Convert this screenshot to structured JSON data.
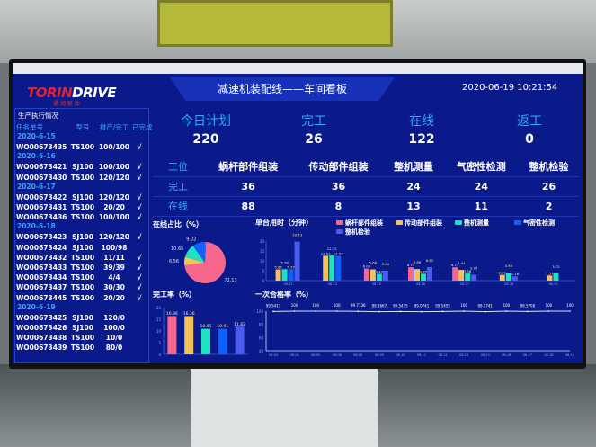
{
  "header": {
    "logo": "TORINDRIVE",
    "logo_sub": "通 润 驱 动",
    "title": "减速机装配线——车间看板",
    "datetime": "2020-06-19 10:21:54"
  },
  "orders": {
    "title": "生产执行情况",
    "columns": [
      "任务单号",
      "型号",
      "排产/完工",
      "已完成"
    ],
    "groups": [
      {
        "date": "2020-6-15",
        "rows": [
          [
            "WO00673435",
            "TS100",
            "100/100",
            "√"
          ]
        ]
      },
      {
        "date": "2020-6-16",
        "rows": [
          [
            "WO00673421",
            "SJ100",
            "100/100",
            "√"
          ],
          [
            "WO00673430",
            "TS100",
            "120/120",
            "√"
          ]
        ]
      },
      {
        "date": "2020-6-17",
        "rows": [
          [
            "WO00673422",
            "SJ100",
            "120/120",
            "√"
          ],
          [
            "WO00673431",
            "TS100",
            "20/20",
            "√"
          ],
          [
            "WO00673436",
            "TS100",
            "100/100",
            "√"
          ]
        ]
      },
      {
        "date": "2020-6-18",
        "rows": [
          [
            "WO00673423",
            "SJ100",
            "120/120",
            "√"
          ],
          [
            "WO00673424",
            "SJ100",
            "100/98",
            ""
          ],
          [
            "WO00673432",
            "TS100",
            "11/11",
            "√"
          ],
          [
            "WO00673433",
            "TS100",
            "39/39",
            "√"
          ],
          [
            "WO00673434",
            "TS100",
            "4/4",
            "√"
          ],
          [
            "WO00673437",
            "TS100",
            "30/30",
            "√"
          ],
          [
            "WO00673445",
            "TS100",
            "20/20",
            "√"
          ]
        ]
      },
      {
        "date": "2020-6-19",
        "rows": [
          [
            "WO00673425",
            "SJ100",
            "120/0",
            ""
          ],
          [
            "WO00673426",
            "SJ100",
            "100/0",
            ""
          ],
          [
            "WO00673438",
            "TS100",
            "10/0",
            ""
          ],
          [
            "WO00673439",
            "TS100",
            "80/0",
            ""
          ]
        ]
      }
    ]
  },
  "kpis": [
    {
      "label": "今日计划",
      "value": "220"
    },
    {
      "label": "完工",
      "value": "26"
    },
    {
      "label": "在线",
      "value": "122"
    },
    {
      "label": "返工",
      "value": "0"
    }
  ],
  "stations": {
    "header": "工位",
    "names": [
      "蜗杆部件组装",
      "传动部件组装",
      "整机测量",
      "气密性检测",
      "整机检验"
    ],
    "rows": [
      {
        "label": "完工",
        "values": [
          "36",
          "36",
          "24",
          "24",
          "26"
        ]
      },
      {
        "label": "在线",
        "values": [
          "88",
          "8",
          "13",
          "11",
          "2"
        ]
      }
    ]
  },
  "colors": [
    "#f7668c",
    "#f5c15a",
    "#1fe0c0",
    "#1060ff",
    "#4a5cf0"
  ],
  "chart_data": [
    {
      "type": "pie",
      "title": "在线占比（%）",
      "slices": [
        {
          "value": 72.13,
          "label": "72.13"
        },
        {
          "value": 6.56,
          "label": "6.56"
        },
        {
          "value": 10.66,
          "label": "10.66"
        },
        {
          "value": 9.02,
          "label": "9.02"
        },
        {
          "value": 1.64,
          "label": ""
        }
      ]
    },
    {
      "type": "bar",
      "title": "单台用时（分钟）",
      "legend": [
        "蜗杆部件组装",
        "传动部件组装",
        "整机测量",
        "气密性检测",
        "整机检验"
      ],
      "legend_position": "top",
      "categories": [
        "06-12",
        "06-13",
        "06-15",
        "06-16",
        "06-17",
        "06-18",
        "06-19"
      ],
      "ylim": [
        0,
        20
      ],
      "yticks": [
        0,
        5,
        10,
        15,
        20
      ],
      "series": [
        {
          "name": "蜗杆部件组装",
          "values": [
            null,
            null,
            6.08,
            6.73,
            6.73,
            null,
            null
          ]
        },
        {
          "name": "传动部件组装",
          "values": [
            5.65,
            12.52,
            5.68,
            5.86,
            5.44,
            2.91,
            2.57
          ]
        },
        {
          "name": "整机测量",
          "values": [
            5.78,
            12.72,
            3.43,
            3.45,
            3.58,
            3.98,
            3.72
          ]
        },
        {
          "name": "气密性检测",
          "values": [
            5.77,
            12.53,
            null,
            null,
            null,
            null,
            null
          ]
        },
        {
          "name": "整机检验",
          "values": [
            19.73,
            null,
            5.04,
            6.82,
            2.97,
            2.16,
            null
          ]
        }
      ]
    },
    {
      "type": "bar",
      "title": "完工率（%）",
      "categories": [
        "蜗杆部件组装",
        "传动部件组装",
        "整机测量",
        "气密性检测",
        "整机检验"
      ],
      "values": [
        16.36,
        16.36,
        10.91,
        10.91,
        11.82
      ],
      "ylim": [
        0,
        20
      ],
      "yticks": [
        0,
        5,
        10,
        15,
        20
      ]
    },
    {
      "type": "line",
      "title": "一次合格率（%）",
      "categories": [
        "06-03",
        "06-04",
        "06-05",
        "06-06",
        "06-08",
        "06-09",
        "06-10",
        "06-11",
        "06-12",
        "06-13",
        "06-15",
        "06-16",
        "06-17",
        "06-18",
        "06-19"
      ],
      "values": [
        99.5413,
        100,
        100,
        100,
        99.7136,
        99.1667,
        99.5475,
        99.0741,
        99.5455,
        100,
        99.0741,
        100,
        99.5708,
        100,
        100
      ],
      "ylim": [
        40,
        100
      ],
      "yticks": [
        40,
        60,
        80,
        100
      ]
    }
  ]
}
